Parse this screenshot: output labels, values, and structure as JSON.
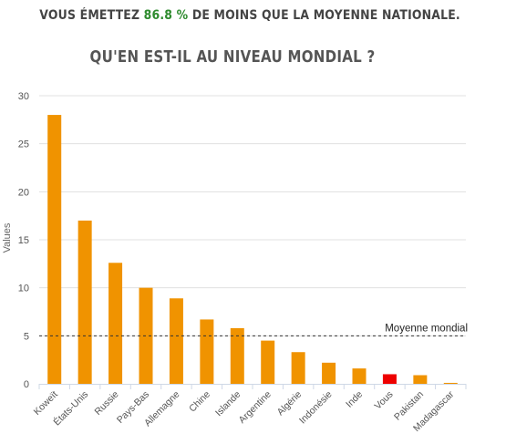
{
  "headline": {
    "prefix": "VOUS ÉMETTEZ",
    "value": "86.8 %",
    "suffix": "DE MOINS QUE LA MOYENNE NATIONALE."
  },
  "subheading": "QU'EN EST-IL AU NIVEAU MONDIAL ?",
  "colors": {
    "bar": "#f09300",
    "highlight": "#ee0000",
    "grid": "#e0e0e0",
    "value_highlight": "#2e8b2e"
  },
  "chart_data": {
    "type": "bar",
    "categories": [
      "Koweït",
      "États-Unis",
      "Russie",
      "Pays-Bas",
      "Allemagne",
      "Chine",
      "Islande",
      "Argentine",
      "Algérie",
      "Indonésie",
      "Inde",
      "Vous",
      "Pakistan",
      "Madagascar"
    ],
    "values": [
      28,
      17,
      12.6,
      10,
      8.9,
      6.7,
      5.8,
      4.5,
      3.3,
      2.2,
      1.6,
      1.0,
      0.9,
      0.1
    ],
    "highlight_category": "Vous",
    "ylabel": "Values",
    "xlabel": "",
    "ylim": [
      0,
      30
    ],
    "yticks": [
      0,
      5,
      10,
      15,
      20,
      25,
      30
    ],
    "grid": true,
    "reference_line": {
      "value": 5,
      "label": "Moyenne mondial",
      "style": "dashed"
    }
  }
}
